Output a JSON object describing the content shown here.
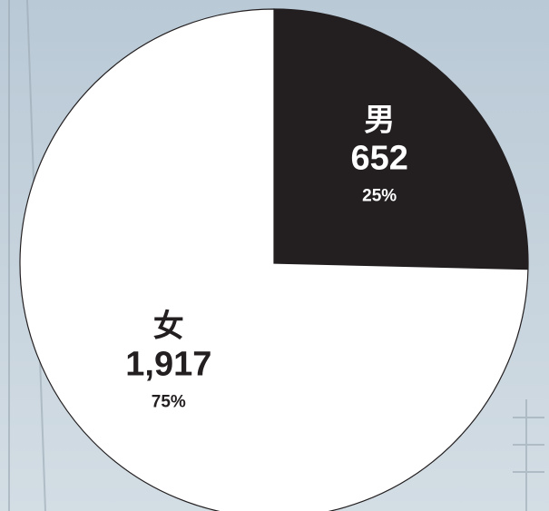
{
  "chart_data": {
    "type": "pie",
    "categories": [
      "男",
      "女"
    ],
    "values": [
      652,
      1917
    ],
    "value_labels": [
      "652",
      "1,917"
    ],
    "percents": [
      25,
      75
    ],
    "percent_labels": [
      "25%",
      "75%"
    ],
    "colors": [
      "#231f20",
      "#ffffff"
    ]
  }
}
